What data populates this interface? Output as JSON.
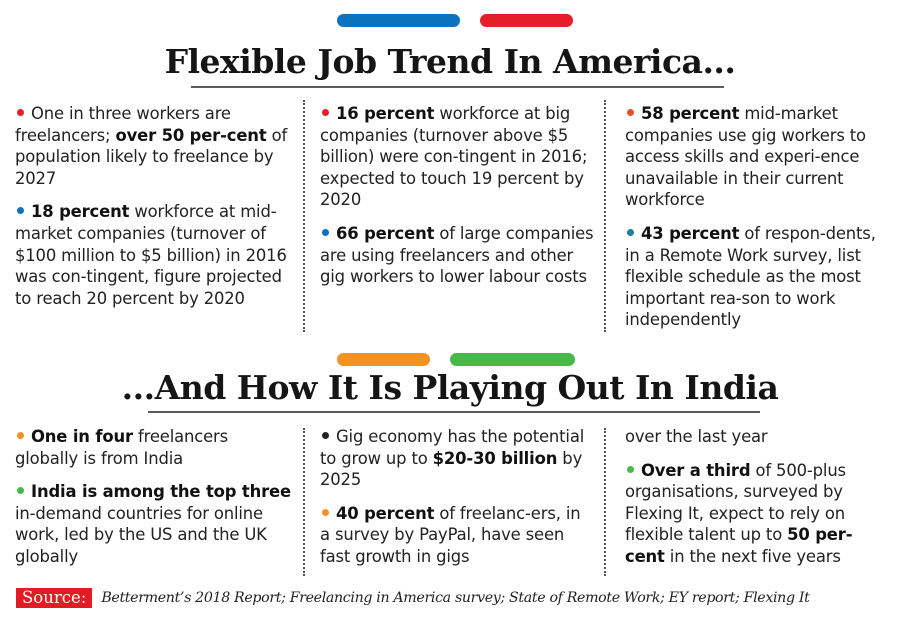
{
  "colors": {
    "blue": "#0b72bf",
    "red": "#e51e2a",
    "orange": "#f39222",
    "green": "#48b848",
    "orange_red": "#e8502a",
    "teal": "#1a7fa0",
    "black": "#222222",
    "source_bg": "#e31b23"
  },
  "america": {
    "title": "Flexible Job Trend In America...",
    "columns": [
      {
        "items": [
          {
            "dot": "red",
            "segments": [
              {
                "text": "One in three workers are freelancers; ",
                "bold": false
              },
              {
                "text": "over 50 per-cent",
                "bold": true
              },
              {
                "text": " of population likely to freelance by 2027",
                "bold": false
              }
            ]
          },
          {
            "dot": "blue",
            "segments": [
              {
                "text": "18 percent",
                "bold": true
              },
              {
                "text": " workforce at mid-market companies (turnover of $100 million to $5 billion) in 2016 was con-tingent, figure projected to reach 20 percent by 2020",
                "bold": false
              }
            ]
          }
        ]
      },
      {
        "items": [
          {
            "dot": "red",
            "segments": [
              {
                "text": "16 percent",
                "bold": true
              },
              {
                "text": " workforce at big companies (turnover above $5 billion) were con-tingent in 2016; expected to touch 19 percent by 2020",
                "bold": false
              }
            ]
          },
          {
            "dot": "blue",
            "segments": [
              {
                "text": "66 percent",
                "bold": true
              },
              {
                "text": " of large companies are using freelancers and other gig workers to lower labour costs",
                "bold": false
              }
            ]
          }
        ]
      },
      {
        "items": [
          {
            "dot": "orange_red",
            "segments": [
              {
                "text": "58 percent",
                "bold": true
              },
              {
                "text": " mid-market companies use gig workers to access skills and experi-ence unavailable in their current workforce",
                "bold": false
              }
            ]
          },
          {
            "dot": "teal",
            "segments": [
              {
                "text": "43 percent",
                "bold": true
              },
              {
                "text": " of respon-dents, in a Remote Work survey, list flexible schedule as the most important rea-son to work independently",
                "bold": false
              }
            ]
          }
        ]
      }
    ]
  },
  "india": {
    "title": "...And How It Is Playing Out In India",
    "columns": [
      {
        "items": [
          {
            "dot": "orange",
            "segments": [
              {
                "text": "One in four",
                "bold": true
              },
              {
                "text": " freelancers globally is from India",
                "bold": false
              }
            ]
          },
          {
            "dot": "green",
            "segments": [
              {
                "text": "India is among the top three",
                "bold": true
              },
              {
                "text": " in-demand countries for online work, led by the US and the UK globally",
                "bold": false
              }
            ]
          }
        ]
      },
      {
        "items": [
          {
            "dot": "black",
            "segments": [
              {
                "text": "Gig economy has the potential to grow up to ",
                "bold": false
              },
              {
                "text": "$20-30 billion",
                "bold": true
              },
              {
                "text": " by 2025",
                "bold": false
              }
            ]
          },
          {
            "dot": "orange",
            "segments": [
              {
                "text": "40 percent",
                "bold": true
              },
              {
                "text": " of freelanc-ers, in a survey by PayPal, have seen fast growth in gigs",
                "bold": false
              }
            ]
          }
        ]
      },
      {
        "items": [
          {
            "dot": null,
            "segments": [
              {
                "text": "over the last year",
                "bold": false
              }
            ]
          },
          {
            "dot": "green",
            "segments": [
              {
                "text": "Over a third",
                "bold": true
              },
              {
                "text": " of 500-plus organisations, surveyed by Flexing It, expect to rely on flexible talent up to ",
                "bold": false
              },
              {
                "text": "50 per-cent",
                "bold": true
              },
              {
                "text": " in the next five years",
                "bold": false
              }
            ]
          }
        ]
      }
    ]
  },
  "source": {
    "label": "Source:",
    "text": "Betterment’s 2018 Report; Freelancing in America survey; State of Remote Work; EY report; Flexing It"
  }
}
